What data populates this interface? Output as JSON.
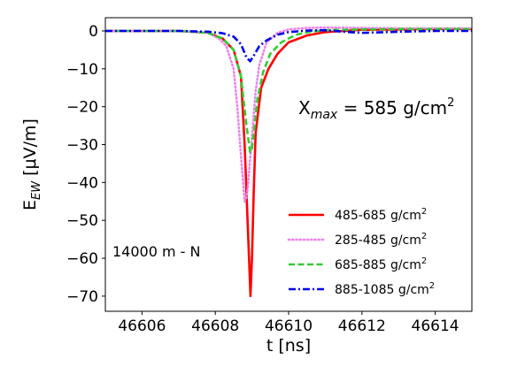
{
  "chart_data": {
    "type": "line",
    "xlabel": "t [ns]",
    "ylabel": {
      "base": "E",
      "sub": "EW",
      "rest": " [μV/m]"
    },
    "xlim": [
      46605,
      46615
    ],
    "ylim": [
      -74,
      3.5
    ],
    "xticks": [
      46606,
      46608,
      46610,
      46612,
      46614
    ],
    "yticks": [
      0,
      -10,
      -20,
      -30,
      -40,
      -50,
      -60,
      -70
    ],
    "grid": false,
    "legend_position": "lower right",
    "annotations": {
      "xmax": {
        "base": "X",
        "sub": "max",
        "rest": " = 585 g/cm",
        "sup": "2"
      },
      "station": "14000 m - N"
    },
    "series": [
      {
        "name": "485-685 g/cm²",
        "label_base": "485-685 g/cm",
        "label_sup": "2",
        "color": "#ff0000",
        "dash": "solid",
        "x": [
          46605,
          46607,
          46607.8,
          46608.2,
          46608.5,
          46608.7,
          46608.8,
          46608.9,
          46608.96,
          46609.0,
          46609.05,
          46609.1,
          46609.25,
          46609.45,
          46609.7,
          46610.0,
          46610.5,
          46611,
          46612,
          46613,
          46614,
          46615
        ],
        "y": [
          0,
          0,
          -0.5,
          -2,
          -5,
          -12,
          -30,
          -55,
          -70,
          -60,
          -42,
          -27,
          -15,
          -10,
          -6,
          -3,
          -1.2,
          -0.3,
          0.3,
          0.4,
          0.5,
          0.5
        ]
      },
      {
        "name": "285-485 g/cm²",
        "label_base": "285-485 g/cm",
        "label_sup": "2",
        "color": "#ee82ee",
        "dash": "dotted",
        "x": [
          46605,
          46607,
          46607.8,
          46608.1,
          46608.3,
          46608.5,
          46608.6,
          46608.7,
          46608.8,
          46608.85,
          46608.9,
          46609.0,
          46609.1,
          46609.2,
          46609.4,
          46609.7,
          46610,
          46610.5,
          46611,
          46612,
          46613,
          46614,
          46615
        ],
        "y": [
          0,
          0,
          -0.5,
          -2,
          -4,
          -10,
          -20,
          -33,
          -45,
          -44,
          -40,
          -28,
          -16,
          -9,
          -3,
          -0.5,
          0.4,
          0.8,
          0.9,
          0.8,
          0.7,
          0.7,
          0.7
        ]
      },
      {
        "name": "685-885 g/cm²",
        "label_base": "685-885 g/cm",
        "label_sup": "2",
        "color": "#33cc33",
        "dash": "dashed",
        "x": [
          46605,
          46607,
          46607.8,
          46608.2,
          46608.5,
          46608.7,
          46608.85,
          46608.95,
          46609.0,
          46609.05,
          46609.15,
          46609.3,
          46609.5,
          46609.8,
          46610.2,
          46610.6,
          46611,
          46612,
          46613,
          46614,
          46615
        ],
        "y": [
          0,
          0,
          -0.5,
          -2,
          -5,
          -12,
          -25,
          -32,
          -31,
          -27,
          -18,
          -11,
          -6,
          -3,
          -1,
          -0.2,
          0.2,
          0.4,
          0.5,
          0.5,
          0.5
        ]
      },
      {
        "name": "885-1085 g/cm²",
        "label_base": "885-1085 g/cm",
        "label_sup": "2",
        "color": "#0000ee",
        "dash": "dashdot",
        "x": [
          46605,
          46607,
          46607.8,
          46608.2,
          46608.5,
          46608.7,
          46608.85,
          46608.95,
          46609.05,
          46609.2,
          46609.4,
          46609.7,
          46610,
          46610.5,
          46611,
          46611.5,
          46612,
          46613,
          46614,
          46615
        ],
        "y": [
          0,
          0,
          -0.2,
          -0.6,
          -1.5,
          -3.5,
          -7,
          -8,
          -6.5,
          -4,
          -2.5,
          -1,
          -0.3,
          0.1,
          0.2,
          -0.2,
          -0.5,
          -0.2,
          0,
          0
        ]
      }
    ]
  }
}
